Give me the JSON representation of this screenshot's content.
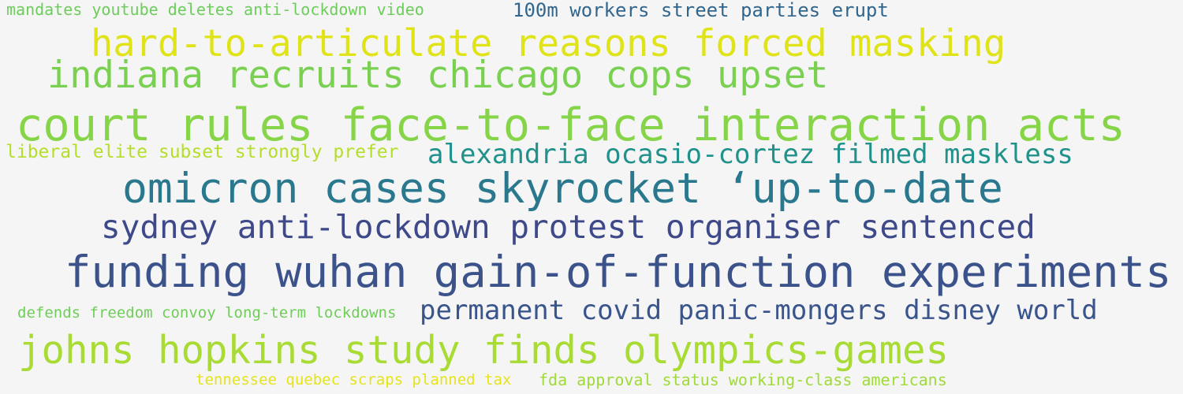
{
  "phrases": [
    {
      "text": "mandates youtube deletes anti-lockdown video",
      "color": "#6ccd5a"
    },
    {
      "text": "100m workers street parties erupt",
      "color": "#31668e"
    },
    {
      "text": "hard-to-articulate reasons forced masking",
      "color": "#dfe318"
    },
    {
      "text": "indiana recruits chicago cops upset",
      "color": "#7ad151"
    },
    {
      "text": "court rules face-to-face interaction acts",
      "color": "#86d549"
    },
    {
      "text": "liberal elite subset strongly prefer",
      "color": "#b5de2b"
    },
    {
      "text": "alexandria ocasio-cortez filmed maskless",
      "color": "#21918c"
    },
    {
      "text": "omicron cases skyrocket ‘up-to-date",
      "color": "#2a788e"
    },
    {
      "text": "sydney anti-lockdown protest organiser sentenced",
      "color": "#3e4989"
    },
    {
      "text": "funding wuhan gain-of-function experiments",
      "color": "#3b528b"
    },
    {
      "text": "defends freedom convoy long-term lockdowns",
      "color": "#6ece58"
    },
    {
      "text": "permanent covid panic-mongers disney world",
      "color": "#3a548c"
    },
    {
      "text": "johns hopkins study finds olympics-games",
      "color": "#a8db34"
    },
    {
      "text": "tennessee quebec scraps planned tax",
      "color": "#e5e419"
    },
    {
      "text": "fda approval status working-class americans",
      "color": "#a0da39"
    }
  ]
}
